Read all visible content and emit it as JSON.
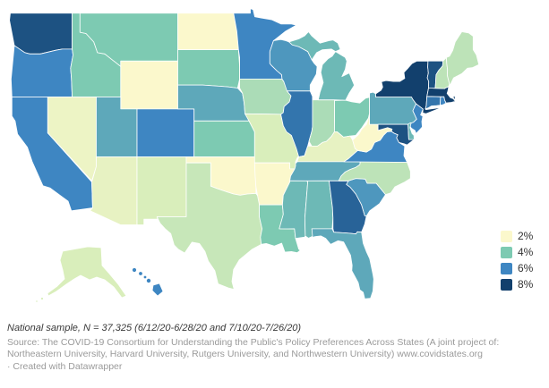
{
  "legend": {
    "items": [
      {
        "label": "2%",
        "value": 2,
        "color": "#fbf8cc"
      },
      {
        "label": "4%",
        "value": 4,
        "color": "#7dcab2"
      },
      {
        "label": "6%",
        "value": 6,
        "color": "#3e86c2"
      },
      {
        "label": "8%",
        "value": 8,
        "color": "#12406d"
      }
    ]
  },
  "notes": {
    "sample": "National sample, N = 37,325 (6/12/20-6/28/20 and 7/10/20-7/26/20)",
    "source": "Source: The COVID-19 Consortium for Understanding the Public's Policy Preferences Across States (A joint project of: Northeastern University, Harvard University, Rutgers University, and Northwestern University) www.covidstates.org",
    "credit": "· Created with Datawrapper"
  },
  "colors": {
    "background": "#ffffff",
    "state_border": "#ffffff",
    "scale_stops": [
      {
        "value": 2,
        "color": "#fbf8cc"
      },
      {
        "value": 3,
        "color": "#d9eebb"
      },
      {
        "value": 4,
        "color": "#7dcab2"
      },
      {
        "value": 6,
        "color": "#3e86c2"
      },
      {
        "value": 8,
        "color": "#12406d"
      }
    ]
  },
  "chart_data": {
    "type": "heatmap",
    "subtype": "us-state-choropleth",
    "unit": "%",
    "legend_labels": [
      "2%",
      "4%",
      "6%",
      "8%"
    ],
    "scale_range": [
      2,
      8
    ],
    "values": {
      "WA": 7.5,
      "OR": 6,
      "CA": 6,
      "NV": 2.4,
      "ID": 4,
      "MT": 4,
      "WY": 2,
      "UT": 5,
      "CO": 6,
      "AZ": 2.6,
      "NM": 3,
      "ND": 2,
      "SD": 4,
      "NE": 5,
      "KS": 4,
      "OK": 2,
      "TX": 3.2,
      "MN": 6,
      "IA": 3.5,
      "MO": 3,
      "AR": 2,
      "LA": 4,
      "WI": 5.5,
      "IL": 6.5,
      "IN": 3.5,
      "OH": 4,
      "MI": 4.5,
      "KY": 2.6,
      "TN": 5,
      "MS": 4.5,
      "AL": 4.5,
      "GA": 7,
      "FL": 5,
      "SC": 5.5,
      "NC": 3.3,
      "VA": 6,
      "WV": 2,
      "MD": 7.5,
      "DE": 4.5,
      "PA": 5,
      "NJ": 6,
      "NY": 8,
      "CT": 6.5,
      "RI": 6,
      "MA": 8.4,
      "VT": 7.5,
      "NH": 3.3,
      "ME": 3.3,
      "AK": 3,
      "HI": 6
    }
  }
}
